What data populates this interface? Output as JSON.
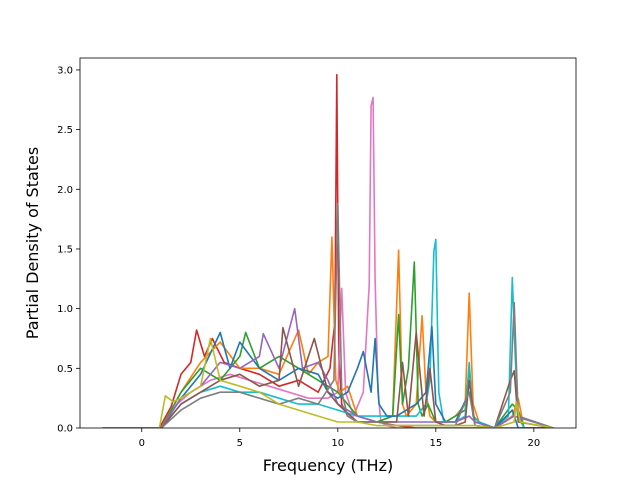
{
  "chart_data": {
    "type": "line",
    "title": "",
    "xlabel": "Frequency (THz)",
    "ylabel": "Partial Density of States",
    "xlim": [
      -3.15,
      22.15
    ],
    "ylim": [
      0.0,
      3.1
    ],
    "xticks": [
      0,
      5,
      10,
      15,
      20
    ],
    "yticks": [
      0.0,
      0.5,
      1.0,
      1.5,
      2.0,
      2.5,
      3.0
    ],
    "xtick_labels": [
      "0",
      "5",
      "10",
      "15",
      "20"
    ],
    "ytick_labels": [
      "0.0",
      "0.5",
      "1.0",
      "1.5",
      "2.0",
      "2.5",
      "3.0"
    ],
    "grid": false,
    "legend": "none",
    "colors": [
      "#1f77b4",
      "#ff7f0e",
      "#2ca02c",
      "#d62728",
      "#9467bd",
      "#8c564b",
      "#e377c2",
      "#7f7f7f",
      "#bcbd22",
      "#17becf"
    ],
    "series": [
      {
        "color": "#d62728",
        "x": [
          -2,
          0.9,
          1.5,
          2,
          2.5,
          2.8,
          3.2,
          3.6,
          4.2,
          5,
          6,
          7,
          8,
          9,
          9.6,
          9.85,
          9.95,
          10.05,
          10.2,
          10.5,
          11,
          12,
          13,
          14,
          15,
          16,
          17,
          18,
          19,
          21
        ],
        "y": [
          0,
          0,
          0.18,
          0.45,
          0.55,
          0.82,
          0.6,
          0.75,
          0.55,
          0.5,
          0.45,
          0.35,
          0.4,
          0.3,
          0.5,
          0.9,
          2.96,
          0.6,
          0.2,
          0.1,
          0.05,
          0.05,
          0.02,
          0,
          0,
          0,
          0,
          0,
          0,
          0
        ]
      },
      {
        "color": "#e377c2",
        "x": [
          -2,
          1,
          1.8,
          2.5,
          3.5,
          4.5,
          5.5,
          6.5,
          7.5,
          8.5,
          9.5,
          10,
          10.2,
          10.4,
          10.8,
          11.3,
          11.6,
          11.7,
          11.8,
          11.9,
          12.05,
          12.2,
          12.5,
          13,
          21
        ],
        "y": [
          0,
          0,
          0.2,
          0.3,
          0.4,
          0.45,
          0.4,
          0.35,
          0.3,
          0.25,
          0.25,
          0.3,
          1.17,
          0.3,
          0.1,
          0.3,
          1.2,
          2.7,
          2.77,
          1.25,
          0.3,
          0.05,
          0.02,
          0,
          0
        ]
      },
      {
        "color": "#ff7f0e",
        "x": [
          -2,
          1,
          2,
          3,
          4,
          5,
          6,
          7,
          8,
          8.5,
          9,
          9.5,
          9.7,
          9.9,
          10.1,
          10.5,
          11,
          12,
          12.8,
          13.1,
          13.3,
          13.5,
          14,
          14.3,
          14.5,
          14.7,
          15,
          15.5,
          16,
          16.5,
          16.7,
          16.9,
          17.2,
          18,
          18.9,
          19.2,
          19.5,
          21
        ],
        "y": [
          0,
          0,
          0.3,
          0.55,
          0.72,
          0.5,
          0.5,
          0.45,
          0.82,
          0.45,
          0.55,
          0.6,
          1.6,
          0.4,
          0.3,
          0.35,
          0.1,
          0.05,
          0.1,
          1.49,
          0.2,
          0.1,
          0.2,
          0.94,
          0.3,
          0.1,
          0.05,
          0.05,
          0.1,
          0.2,
          1.13,
          0.2,
          0.05,
          0,
          0.1,
          0.25,
          0,
          0
        ]
      },
      {
        "color": "#2ca02c",
        "x": [
          -2,
          1,
          2,
          3,
          4,
          5,
          5.3,
          6,
          7,
          8,
          9,
          10,
          11,
          12,
          12.8,
          13.1,
          13.3,
          13.6,
          13.9,
          14.1,
          14.3,
          14.6,
          15,
          15.5,
          16,
          16.5,
          16.7,
          16.9,
          17.2,
          18,
          18.9,
          19.2,
          19.5,
          21
        ],
        "y": [
          0,
          0,
          0.3,
          0.5,
          0.4,
          0.6,
          0.8,
          0.5,
          0.6,
          0.5,
          0.4,
          0.3,
          0.1,
          0.05,
          0.1,
          0.95,
          0.2,
          0.5,
          1.39,
          0.2,
          0.1,
          0.2,
          0.05,
          0.05,
          0.1,
          0.15,
          0.5,
          0.1,
          0.05,
          0,
          0.2,
          0.15,
          0,
          0
        ]
      },
      {
        "color": "#17becf",
        "x": [
          -2,
          1,
          2,
          3,
          4,
          5,
          6,
          7,
          8,
          9,
          10,
          11,
          12,
          13,
          14,
          14.5,
          14.7,
          14.9,
          15,
          15.15,
          15.4,
          16,
          16.5,
          16.7,
          16.9,
          17.2,
          18,
          18.7,
          18.9,
          19.05,
          19.2,
          19.5,
          21
        ],
        "y": [
          0,
          0,
          0.2,
          0.3,
          0.35,
          0.3,
          0.3,
          0.25,
          0.2,
          0.2,
          0.15,
          0.1,
          0.1,
          0.1,
          0.1,
          0.2,
          0.4,
          1.48,
          1.58,
          0.3,
          0.05,
          0.05,
          0.1,
          0.55,
          0.1,
          0.05,
          0,
          0.1,
          1.26,
          0.6,
          0.1,
          0,
          0
        ]
      },
      {
        "color": "#1f77b4",
        "x": [
          -2,
          1,
          2,
          3,
          4,
          4.5,
          5,
          6,
          7,
          8,
          9,
          9.5,
          10,
          10.5,
          11,
          11.3,
          11.7,
          11.9,
          12.1,
          12.5,
          13,
          13.5,
          14,
          14.5,
          14.8,
          15,
          15.5,
          16,
          16.7,
          17,
          18,
          18.9,
          19.2,
          21
        ],
        "y": [
          0,
          0,
          0.25,
          0.45,
          0.8,
          0.5,
          0.72,
          0.5,
          0.4,
          0.5,
          0.45,
          0.3,
          0.25,
          0.3,
          0.5,
          0.64,
          0.3,
          0.75,
          0.2,
          0.1,
          0.1,
          0.15,
          0.2,
          0.3,
          0.85,
          0.2,
          0.05,
          0.05,
          0.3,
          0.05,
          0,
          0.15,
          0,
          0
        ]
      },
      {
        "color": "#9467bd",
        "x": [
          -2,
          1,
          2,
          3,
          4,
          5,
          6,
          6.2,
          7,
          7.8,
          8.2,
          9,
          9.5,
          10,
          10.5,
          11,
          12,
          12.5,
          13,
          14,
          15,
          16,
          16.7,
          17,
          18,
          19,
          21
        ],
        "y": [
          0,
          0,
          0.25,
          0.35,
          0.55,
          0.5,
          0.6,
          0.79,
          0.5,
          1.0,
          0.5,
          0.55,
          0.4,
          0.2,
          0.15,
          0.1,
          0.05,
          0.05,
          0.05,
          0.05,
          0.05,
          0.05,
          0.1,
          0.05,
          0,
          0.1,
          0
        ]
      },
      {
        "color": "#8c564b",
        "x": [
          -2,
          1,
          2,
          3,
          4,
          5,
          6,
          7,
          7.2,
          8,
          8.8,
          9.5,
          10,
          11,
          12,
          13,
          13.3,
          13.6,
          14,
          14.4,
          14.7,
          15,
          15.5,
          16,
          16.5,
          16.7,
          17,
          18,
          18.8,
          19,
          19.2,
          21
        ],
        "y": [
          0,
          0,
          0.2,
          0.3,
          0.4,
          0.45,
          0.35,
          0.4,
          0.84,
          0.35,
          0.75,
          0.3,
          0.2,
          0.05,
          0.05,
          0.05,
          0.55,
          0.1,
          0.8,
          0.1,
          0.5,
          0.05,
          0.02,
          0.02,
          0.05,
          0.4,
          0.02,
          0,
          0.4,
          0.48,
          0.05,
          0
        ]
      },
      {
        "color": "#7f7f7f",
        "x": [
          -2,
          1,
          2,
          3,
          4,
          5,
          6,
          7,
          8,
          9,
          9.8,
          10,
          10.2,
          10.5,
          11,
          12,
          13,
          14,
          15,
          16,
          16.7,
          17,
          18,
          18.8,
          19,
          19.2,
          21
        ],
        "y": [
          0,
          0,
          0.15,
          0.25,
          0.3,
          0.3,
          0.25,
          0.2,
          0.25,
          0.2,
          0.4,
          1.88,
          0.3,
          0.1,
          0.05,
          0.05,
          0.02,
          0.02,
          0.02,
          0.02,
          0.3,
          0.02,
          0,
          0.3,
          1.05,
          0.1,
          0
        ]
      },
      {
        "color": "#bcbd22",
        "x": [
          -2,
          0.9,
          1.2,
          1.6,
          2,
          2.5,
          3,
          3.5,
          4,
          5,
          6,
          7,
          8,
          9,
          10,
          11,
          12,
          13,
          14,
          15,
          16,
          17,
          18,
          19,
          19.1,
          19.3,
          21
        ],
        "y": [
          0,
          0,
          0.27,
          0.22,
          0.25,
          0.3,
          0.35,
          0.75,
          0.4,
          0.35,
          0.3,
          0.2,
          0.15,
          0.1,
          0.05,
          0.05,
          0.02,
          0.02,
          0.02,
          0.02,
          0.02,
          0.02,
          0,
          0.05,
          0.22,
          0.05,
          0
        ]
      }
    ]
  }
}
